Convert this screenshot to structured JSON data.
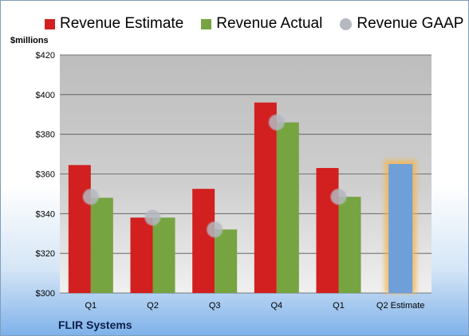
{
  "legend": {
    "items": [
      {
        "label": "Revenue Estimate",
        "color": "#d21f1f",
        "shape": "square"
      },
      {
        "label": "Revenue Actual",
        "color": "#76a441",
        "shape": "square"
      },
      {
        "label": "Revenue GAAP",
        "color": "#b4b8c0",
        "shape": "circle"
      }
    ]
  },
  "unit_label": "$millions",
  "company": "FLIR Systems",
  "chart_data": {
    "type": "bar",
    "categories": [
      "Q1",
      "Q2",
      "Q3",
      "Q4",
      "Q1",
      "Q2 Estimate"
    ],
    "series": [
      {
        "name": "Revenue Estimate",
        "color": "#d21f1f",
        "values": [
          364.5,
          338,
          352.5,
          396,
          363,
          null
        ]
      },
      {
        "name": "Revenue Actual",
        "color": "#76a441",
        "values": [
          348,
          338,
          332,
          386,
          348.5,
          null
        ]
      },
      {
        "name": "Revenue GAAP",
        "color": "#b4b8c0",
        "marker": "circle",
        "values": [
          348.5,
          338,
          332,
          386,
          348.5,
          null
        ]
      }
    ],
    "forecast": {
      "category": "Q2 Estimate",
      "value": 365,
      "color": "#6f9fd8",
      "glow": "#f5b34a"
    },
    "ylabel": "$millions",
    "ylim": [
      300,
      420
    ],
    "yticks": [
      300,
      320,
      340,
      360,
      380,
      400,
      420
    ],
    "ytick_labels": [
      "$300",
      "$320",
      "$340",
      "$360",
      "$380",
      "$400",
      "$420"
    ],
    "grid": true,
    "legend_position": "top"
  }
}
